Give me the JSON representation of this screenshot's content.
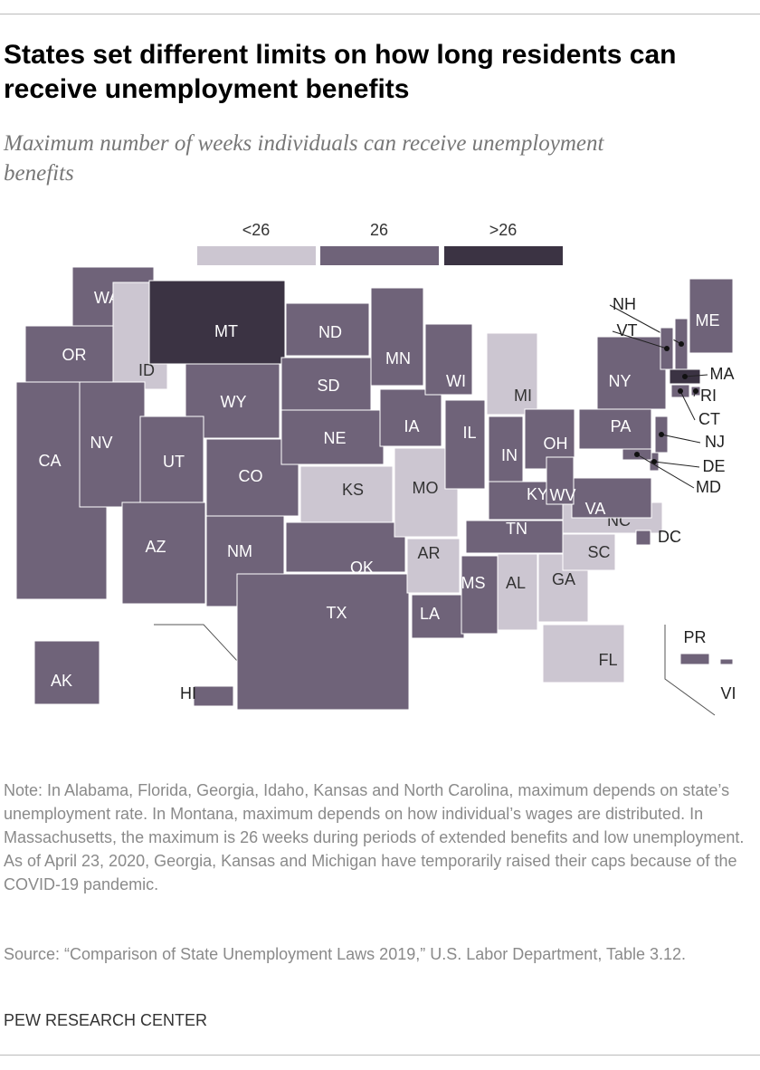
{
  "header": {
    "title": "States set different limits on how long residents can receive unemployment benefits",
    "subtitle": "Maximum number of weeks individuals can receive unemployment benefits"
  },
  "legend": {
    "items": [
      {
        "label": "<26",
        "color": "#ccc6d1"
      },
      {
        "label": "26",
        "color": "#6f6379"
      },
      {
        "label": ">26",
        "color": "#3b3343"
      }
    ]
  },
  "states": [
    {
      "label": "WA",
      "group": "26"
    },
    {
      "label": "OR",
      "group": "26"
    },
    {
      "label": "CA",
      "group": "26"
    },
    {
      "label": "ID",
      "group": "<26"
    },
    {
      "label": "NV",
      "group": "26"
    },
    {
      "label": "MT",
      "group": ">26"
    },
    {
      "label": "WY",
      "group": "26"
    },
    {
      "label": "UT",
      "group": "26"
    },
    {
      "label": "CO",
      "group": "26"
    },
    {
      "label": "AZ",
      "group": "26"
    },
    {
      "label": "NM",
      "group": "26"
    },
    {
      "label": "ND",
      "group": "26"
    },
    {
      "label": "SD",
      "group": "26"
    },
    {
      "label": "NE",
      "group": "26"
    },
    {
      "label": "KS",
      "group": "<26"
    },
    {
      "label": "OK",
      "group": "26"
    },
    {
      "label": "TX",
      "group": "26"
    },
    {
      "label": "MN",
      "group": "26"
    },
    {
      "label": "IA",
      "group": "26"
    },
    {
      "label": "MO",
      "group": "<26"
    },
    {
      "label": "AR",
      "group": "<26"
    },
    {
      "label": "LA",
      "group": "26"
    },
    {
      "label": "WI",
      "group": "26"
    },
    {
      "label": "IL",
      "group": "26"
    },
    {
      "label": "MI",
      "group": "<26"
    },
    {
      "label": "IN",
      "group": "26"
    },
    {
      "label": "OH",
      "group": "26"
    },
    {
      "label": "KY",
      "group": "26"
    },
    {
      "label": "TN",
      "group": "26"
    },
    {
      "label": "MS",
      "group": "26"
    },
    {
      "label": "AL",
      "group": "<26"
    },
    {
      "label": "GA",
      "group": "<26"
    },
    {
      "label": "FL",
      "group": "<26"
    },
    {
      "label": "SC",
      "group": "<26"
    },
    {
      "label": "NC",
      "group": "<26"
    },
    {
      "label": "VA",
      "group": "26"
    },
    {
      "label": "WV",
      "group": "26"
    },
    {
      "label": "PA",
      "group": "26"
    },
    {
      "label": "NY",
      "group": "26"
    },
    {
      "label": "ME",
      "group": "26"
    },
    {
      "label": "NH",
      "group": "26"
    },
    {
      "label": "VT",
      "group": "26"
    },
    {
      "label": "MA",
      "group": ">26"
    },
    {
      "label": "RI",
      "group": "26"
    },
    {
      "label": "CT",
      "group": "26"
    },
    {
      "label": "NJ",
      "group": "26"
    },
    {
      "label": "DE",
      "group": "26"
    },
    {
      "label": "MD",
      "group": "26"
    },
    {
      "label": "DC",
      "group": "26"
    },
    {
      "label": "AK",
      "group": "26"
    },
    {
      "label": "HI",
      "group": "26"
    },
    {
      "label": "PR",
      "group": "26"
    },
    {
      "label": "VI",
      "group": "26"
    }
  ],
  "footer": {
    "note": "Note: In Alabama, Florida, Georgia, Idaho, Kansas and North Carolina, maximum depends on state’s unemployment rate. In Montana, maximum depends on how individual’s wages are distributed. In Massachusetts, the maximum is 26 weeks during periods of extended benefits and low unemployment. As of April 23, 2020, Georgia, Kansas and Michigan have temporarily raised their caps because of the COVID-19 pandemic.",
    "source": "Source: “Comparison of State Unemployment Laws 2019,” U.S. Labor Department, Table 3.12.",
    "org": "PEW RESEARCH CENTER"
  }
}
